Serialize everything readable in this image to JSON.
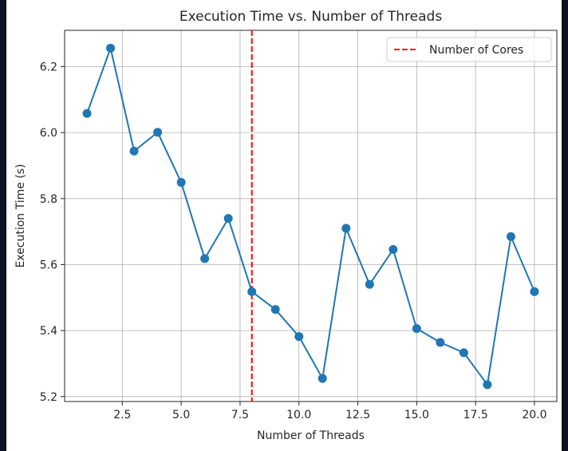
{
  "chart_data": {
    "type": "line",
    "title": "Execution Time vs. Number of Threads",
    "xlabel": "Number of Threads",
    "ylabel": "Execution Time (s)",
    "xlim": [
      0.05,
      20.95
    ],
    "ylim": [
      5.185,
      6.31
    ],
    "xticks": [
      2.5,
      5.0,
      7.5,
      10.0,
      12.5,
      15.0,
      17.5,
      20.0
    ],
    "xtick_labels": [
      "2.5",
      "5.0",
      "7.5",
      "10.0",
      "12.5",
      "15.0",
      "17.5",
      "20.0"
    ],
    "yticks": [
      5.2,
      5.4,
      5.6,
      5.8,
      6.0,
      6.2
    ],
    "ytick_labels": [
      "5.2",
      "5.4",
      "5.6",
      "5.8",
      "6.0",
      "6.2"
    ],
    "grid": true,
    "legend_position": "top-right",
    "series": [
      {
        "color": "#1f77b4",
        "marker": "circle",
        "x": [
          1,
          2,
          3,
          4,
          5,
          6,
          7,
          8,
          9,
          10,
          11,
          12,
          13,
          14,
          15,
          16,
          17,
          18,
          19,
          20
        ],
        "y": [
          6.058,
          6.256,
          5.944,
          6.001,
          5.849,
          5.618,
          5.74,
          5.518,
          5.464,
          5.382,
          5.255,
          5.71,
          5.54,
          5.646,
          5.406,
          5.364,
          5.333,
          5.236,
          5.685,
          5.518
        ]
      }
    ],
    "reference_lines": [
      {
        "orientation": "vertical",
        "x": 8,
        "color": "#ff0000",
        "style": "dashed",
        "label": "Number of Cores"
      }
    ]
  }
}
